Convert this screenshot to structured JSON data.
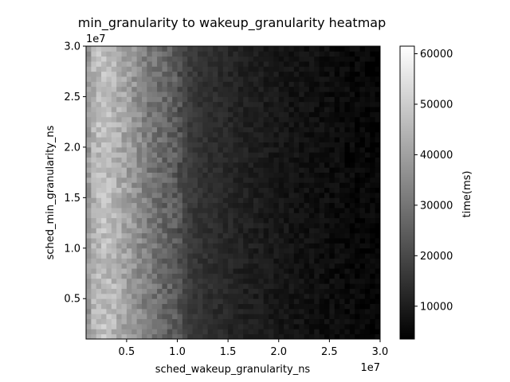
{
  "chart_data": {
    "type": "heatmap",
    "title": "min_granularity to wakeup_granularity heatmap",
    "xlabel": "sched_wakeup_granularity_ns",
    "ylabel": "sched_min_granularity_ns",
    "x_offset_label": "1e7",
    "y_offset_label": "1e7",
    "xlim": [
      1000000,
      30000000
    ],
    "ylim": [
      1000000,
      30000000
    ],
    "x_ticks": [
      {
        "value": 5000000,
        "label": "0.5"
      },
      {
        "value": 10000000,
        "label": "1.0"
      },
      {
        "value": 15000000,
        "label": "1.5"
      },
      {
        "value": 20000000,
        "label": "2.0"
      },
      {
        "value": 25000000,
        "label": "2.5"
      },
      {
        "value": 30000000,
        "label": "3.0"
      }
    ],
    "y_ticks": [
      {
        "value": 5000000,
        "label": "0.5"
      },
      {
        "value": 10000000,
        "label": "1.0"
      },
      {
        "value": 15000000,
        "label": "1.5"
      },
      {
        "value": 20000000,
        "label": "2.0"
      },
      {
        "value": 25000000,
        "label": "2.5"
      },
      {
        "value": 30000000,
        "label": "3.0"
      }
    ],
    "grid": false,
    "colormap": "gray",
    "colorbar": {
      "label": "time(ms)",
      "range": [
        3500,
        61500
      ],
      "ticks": [
        {
          "value": 10000,
          "label": "10000"
        },
        {
          "value": 20000,
          "label": "20000"
        },
        {
          "value": 30000,
          "label": "30000"
        },
        {
          "value": 40000,
          "label": "40000"
        },
        {
          "value": 50000,
          "label": "50000"
        },
        {
          "value": 60000,
          "label": "60000"
        }
      ]
    },
    "x_columns": [
      1000000,
      1500000,
      2000000,
      2500000,
      3000000,
      3500000,
      4000000,
      4500000,
      5000000,
      5500000,
      6000000,
      6500000,
      7000000,
      7500000,
      8000000,
      8500000,
      9000000,
      9500000,
      10000000,
      10500000,
      11000000,
      11500000,
      12000000,
      12500000,
      13000000,
      13500000,
      14000000,
      14500000,
      15000000,
      15500000,
      16000000,
      16500000,
      17000000,
      17500000,
      18000000,
      18500000,
      19000000,
      19500000,
      20000000,
      20500000,
      21000000,
      21500000,
      22000000,
      22500000,
      23000000,
      23500000,
      24000000,
      24500000,
      25000000,
      25500000,
      26000000,
      26500000,
      27000000,
      27500000,
      28000000,
      28500000,
      29000000,
      29500000
    ],
    "y_rows": [
      1000000,
      1500000,
      2000000,
      2500000,
      3000000,
      3500000,
      4000000,
      4500000,
      5000000,
      5500000,
      6000000,
      6500000,
      7000000,
      7500000,
      8000000,
      8500000,
      9000000,
      9500000,
      10000000,
      10500000,
      11000000,
      11500000,
      12000000,
      12500000,
      13000000,
      13500000,
      14000000,
      14500000,
      15000000,
      15500000,
      16000000,
      16500000,
      17000000,
      17500000,
      18000000,
      18500000,
      19000000,
      19500000,
      20000000,
      20500000,
      21000000,
      21500000,
      22000000,
      22500000,
      23000000,
      23500000,
      24000000,
      24500000,
      25000000,
      25500000,
      26000000,
      26500000,
      27000000,
      27500000,
      28000000,
      28500000,
      29000000,
      29500000
    ],
    "column_mean_time_ms": [
      38000,
      44000,
      46000,
      47000,
      46000,
      45000,
      43000,
      41000,
      39000,
      37000,
      35000,
      33000,
      31000,
      29500,
      28000,
      26500,
      25500,
      24500,
      22000,
      19000,
      17000,
      16000,
      15000,
      14500,
      14000,
      13500,
      13000,
      12500,
      12000,
      11500,
      11000,
      10700,
      10400,
      10100,
      9800,
      9500,
      9200,
      8900,
      8600,
      8300,
      8000,
      7800,
      7600,
      7400,
      7200,
      7000,
      6800,
      6600,
      6400,
      6200,
      6000,
      5800,
      5600,
      5400,
      5200,
      5000,
      4800,
      4600
    ],
    "cell_variation_ms": 5000
  }
}
